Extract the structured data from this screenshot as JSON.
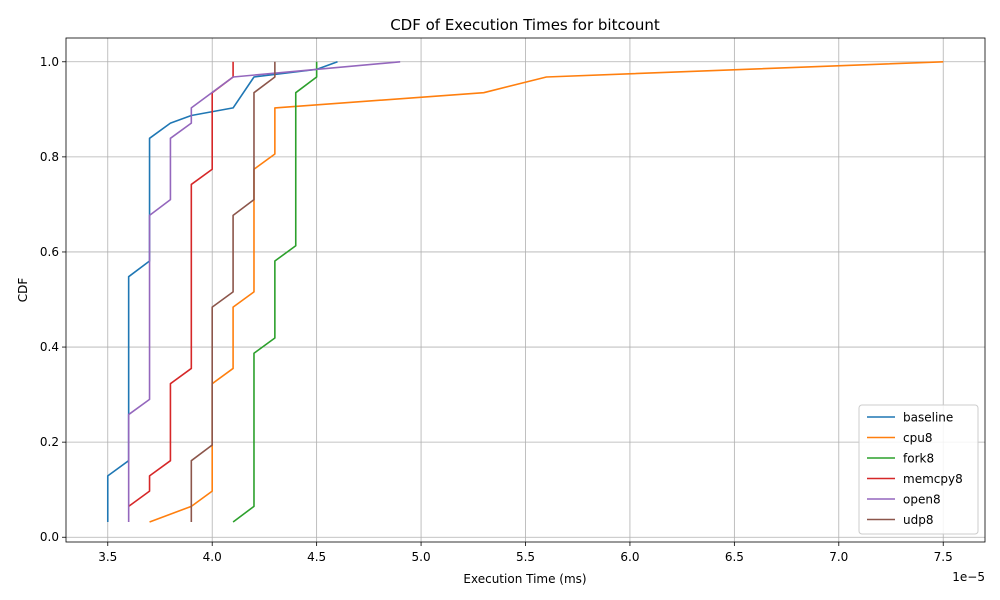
{
  "chart_data": {
    "type": "line",
    "title": "CDF of Execution Times for bitcount",
    "xlabel": "Execution Time (ms)",
    "ylabel": "CDF",
    "x_offset_label": "1e−5",
    "xlim": [
      3.3,
      7.7
    ],
    "ylim": [
      -0.01,
      1.05
    ],
    "x_ticks": [
      3.5,
      4.0,
      4.5,
      5.0,
      5.5,
      6.0,
      6.5,
      7.0,
      7.5
    ],
    "x_tick_labels": [
      "3.5",
      "4.0",
      "4.5",
      "5.0",
      "5.5",
      "6.0",
      "6.5",
      "7.0",
      "7.5"
    ],
    "y_ticks": [
      0.0,
      0.2,
      0.4,
      0.6,
      0.8,
      1.0
    ],
    "y_tick_labels": [
      "0.0",
      "0.2",
      "0.4",
      "0.6",
      "0.8",
      "1.0"
    ],
    "grid": true,
    "legend_position": "lower-right",
    "series": [
      {
        "name": "baseline",
        "color": "#1f77b4",
        "x": [
          3.5,
          3.5,
          3.6,
          3.6,
          3.7,
          3.7,
          3.8,
          3.9,
          4.1,
          4.2,
          4.2,
          4.5,
          4.6
        ],
        "y": [
          0.032,
          0.129,
          0.161,
          0.548,
          0.581,
          0.839,
          0.871,
          0.887,
          0.903,
          0.968,
          0.968,
          0.984,
          1.0
        ]
      },
      {
        "name": "cpu8",
        "color": "#ff7f0e",
        "x": [
          3.7,
          3.9,
          4.0,
          4.0,
          4.1,
          4.1,
          4.2,
          4.2,
          4.3,
          4.3,
          5.3,
          5.6,
          7.5
        ],
        "y": [
          0.032,
          0.065,
          0.097,
          0.323,
          0.355,
          0.484,
          0.516,
          0.774,
          0.806,
          0.903,
          0.935,
          0.968,
          1.0
        ]
      },
      {
        "name": "fork8",
        "color": "#2ca02c",
        "x": [
          4.1,
          4.2,
          4.2,
          4.3,
          4.3,
          4.4,
          4.4,
          4.5,
          4.5
        ],
        "y": [
          0.032,
          0.065,
          0.387,
          0.419,
          0.581,
          0.613,
          0.935,
          0.968,
          1.0
        ]
      },
      {
        "name": "memcpy8",
        "color": "#d62728",
        "x": [
          3.6,
          3.7,
          3.7,
          3.8,
          3.8,
          3.9,
          3.9,
          4.0,
          4.0,
          4.1,
          4.1
        ],
        "y": [
          0.065,
          0.097,
          0.129,
          0.161,
          0.323,
          0.355,
          0.742,
          0.774,
          0.935,
          0.968,
          1.0
        ]
      },
      {
        "name": "open8",
        "color": "#9467bd",
        "x": [
          3.6,
          3.6,
          3.7,
          3.7,
          3.8,
          3.8,
          3.9,
          3.9,
          4.1,
          4.9
        ],
        "y": [
          0.032,
          0.258,
          0.29,
          0.677,
          0.71,
          0.839,
          0.871,
          0.903,
          0.968,
          1.0
        ]
      },
      {
        "name": "udp8",
        "color": "#8c564b",
        "x": [
          3.9,
          3.9,
          4.0,
          4.0,
          4.1,
          4.1,
          4.2,
          4.2,
          4.3,
          4.3
        ],
        "y": [
          0.032,
          0.161,
          0.194,
          0.484,
          0.516,
          0.677,
          0.71,
          0.935,
          0.968,
          1.0
        ]
      }
    ]
  }
}
